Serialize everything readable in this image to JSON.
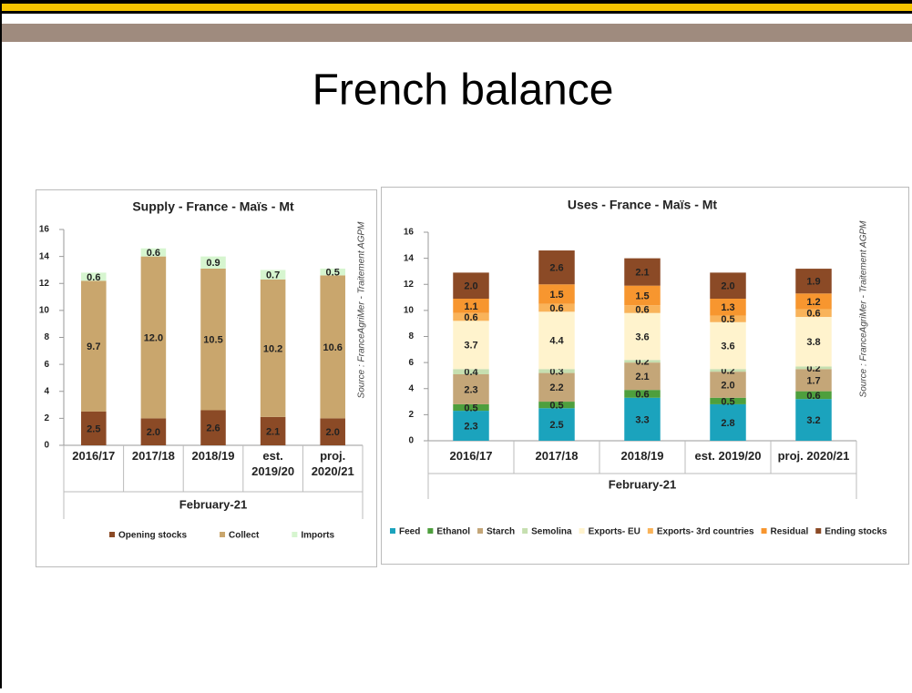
{
  "slide": {
    "title": "French balance"
  },
  "chart_data": [
    {
      "type": "stacked_bar",
      "title": "Supply -  France - Maïs - Mt",
      "categories": [
        "2016/17",
        "2017/18",
        "2018/19",
        "est. 2019/20",
        "proj. 2020/21"
      ],
      "xlabel": "February-21",
      "annotation": "Source : FranceAgriMer - Traitement AGPM",
      "ylim": [
        0,
        16
      ],
      "yticks": [
        0,
        2,
        4,
        6,
        8,
        10,
        12,
        14,
        16
      ],
      "legend": "bottom",
      "series": [
        {
          "name": "Opening stocks",
          "color": "#8b4a26",
          "values": [
            2.5,
            2.0,
            2.6,
            2.1,
            2.0
          ],
          "value_labels": [
            "2.5",
            "2.0",
            "2.6",
            "2.1",
            "2.0"
          ]
        },
        {
          "name": "Collect",
          "color": "#c9a66d",
          "values": [
            9.7,
            12.0,
            10.5,
            10.2,
            10.6
          ],
          "value_labels": [
            "9.7",
            "12.0",
            "10.5",
            "10.2",
            "10.6"
          ]
        },
        {
          "name": "Imports",
          "color": "#d6f5cf",
          "values": [
            0.6,
            0.6,
            0.9,
            0.7,
            0.5
          ],
          "value_labels": [
            "0.6",
            "0.6",
            "0.9",
            "0.7",
            "0.5"
          ]
        }
      ]
    },
    {
      "type": "stacked_bar",
      "title": "Uses -  France - Maïs - Mt",
      "categories": [
        "2016/17",
        "2017/18",
        "2018/19",
        "est. 2019/20",
        "proj. 2020/21"
      ],
      "xlabel": "February-21",
      "annotation": "Source : FranceAgriMer - Traitement AGPM",
      "ylim": [
        0,
        16
      ],
      "yticks": [
        0,
        2,
        4,
        6,
        8,
        10,
        12,
        14,
        16
      ],
      "legend": "bottom",
      "series": [
        {
          "name": "Feed",
          "color": "#1ba3bd",
          "values": [
            2.3,
            2.5,
            3.3,
            2.8,
            3.2
          ],
          "value_labels": [
            "2.3",
            "2.5",
            "3.3",
            "2.8",
            "3.2"
          ]
        },
        {
          "name": "Ethanol",
          "color": "#4e9f3d",
          "values": [
            0.5,
            0.5,
            0.6,
            0.5,
            0.6
          ],
          "value_labels": [
            "0.5",
            "0.5",
            "0.6",
            "0.5",
            "0.6"
          ]
        },
        {
          "name": "Starch",
          "color": "#c4a678",
          "values": [
            2.3,
            2.2,
            2.1,
            2.0,
            1.7
          ],
          "value_labels": [
            "2.3",
            "2.2",
            "2.1",
            "2.0",
            "1.7"
          ]
        },
        {
          "name": "Semolina",
          "color": "#c6dfb0",
          "values": [
            0.4,
            0.3,
            0.2,
            0.2,
            0.2
          ],
          "value_labels": [
            "0.4",
            "0.3",
            "0.2",
            "0.2",
            "0.2"
          ]
        },
        {
          "name": "Exports- EU",
          "color": "#fff3cd",
          "values": [
            3.7,
            4.4,
            3.6,
            3.6,
            3.8
          ],
          "value_labels": [
            "3.7",
            "4.4",
            "3.6",
            "3.6",
            "3.8"
          ]
        },
        {
          "name": "Exports- 3rd countries",
          "color": "#f9b35a",
          "values": [
            0.6,
            0.6,
            0.6,
            0.5,
            0.6
          ],
          "value_labels": [
            "0.6",
            "0.6",
            "0.6",
            "0.5",
            "0.6"
          ]
        },
        {
          "name": "Residual",
          "color": "#f7962f",
          "values": [
            1.1,
            1.5,
            1.5,
            1.3,
            1.2
          ],
          "value_labels": [
            "1.1",
            "1.5",
            "1.5",
            "1.3",
            "1.2"
          ]
        },
        {
          "name": "Ending stocks",
          "color": "#8b4a26",
          "values": [
            2.0,
            2.6,
            2.1,
            2.0,
            1.9
          ],
          "value_labels": [
            "2.0",
            "2.6",
            "2.1",
            "2.0",
            "1.9"
          ]
        }
      ]
    }
  ]
}
